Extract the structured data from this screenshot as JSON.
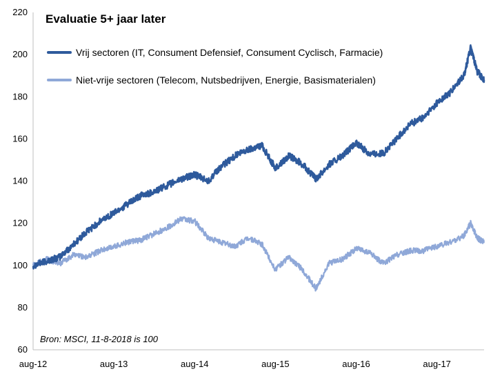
{
  "chart_data": {
    "type": "line",
    "title": "Evaluatie 5+ jaar later",
    "note": "Bron: MSCI, 11-8-2018 is 100",
    "xlabel": "",
    "ylabel": "",
    "ylim": [
      60,
      220
    ],
    "yticks": [
      60,
      80,
      100,
      120,
      140,
      160,
      180,
      200,
      220
    ],
    "xlim": [
      "2012-08",
      "2018-03"
    ],
    "xticks": [
      "aug-12",
      "aug-13",
      "aug-14",
      "aug-15",
      "aug-16",
      "aug-17"
    ],
    "x": [
      "2012-08",
      "2012-10",
      "2012-12",
      "2013-02",
      "2013-04",
      "2013-06",
      "2013-08",
      "2013-10",
      "2013-12",
      "2014-02",
      "2014-04",
      "2014-06",
      "2014-08",
      "2014-10",
      "2014-12",
      "2015-02",
      "2015-04",
      "2015-06",
      "2015-08",
      "2015-10",
      "2015-12",
      "2016-02",
      "2016-04",
      "2016-06",
      "2016-08",
      "2016-10",
      "2016-12",
      "2017-02",
      "2017-04",
      "2017-06",
      "2017-08",
      "2017-10",
      "2017-12",
      "2018-01",
      "2018-02",
      "2018-03"
    ],
    "series": [
      {
        "name": "Vrij sectoren (IT, Consument Defensief, Consument Cyclisch, Farmacie)",
        "color": "#2e5a9c",
        "values": [
          100,
          102,
          104,
          110,
          116,
          121,
          125,
          129,
          133,
          135,
          138,
          141,
          143,
          140,
          147,
          152,
          155,
          157,
          146,
          152,
          148,
          141,
          148,
          152,
          158,
          153,
          153,
          160,
          167,
          170,
          177,
          182,
          190,
          203,
          192,
          188
        ]
      },
      {
        "name": "Niet-vrije sectoren (Telecom, Nutsbedrijven, Energie, Basismaterialen)",
        "color": "#8fa8d8",
        "values": [
          100,
          103,
          101,
          105,
          104,
          107,
          109,
          111,
          112,
          115,
          118,
          122,
          121,
          113,
          111,
          109,
          113,
          110,
          98,
          104,
          98,
          89,
          101,
          103,
          108,
          106,
          101,
          105,
          107,
          107,
          109,
          111,
          114,
          120,
          113,
          111
        ]
      }
    ],
    "grid": false,
    "legend": "top-left"
  }
}
